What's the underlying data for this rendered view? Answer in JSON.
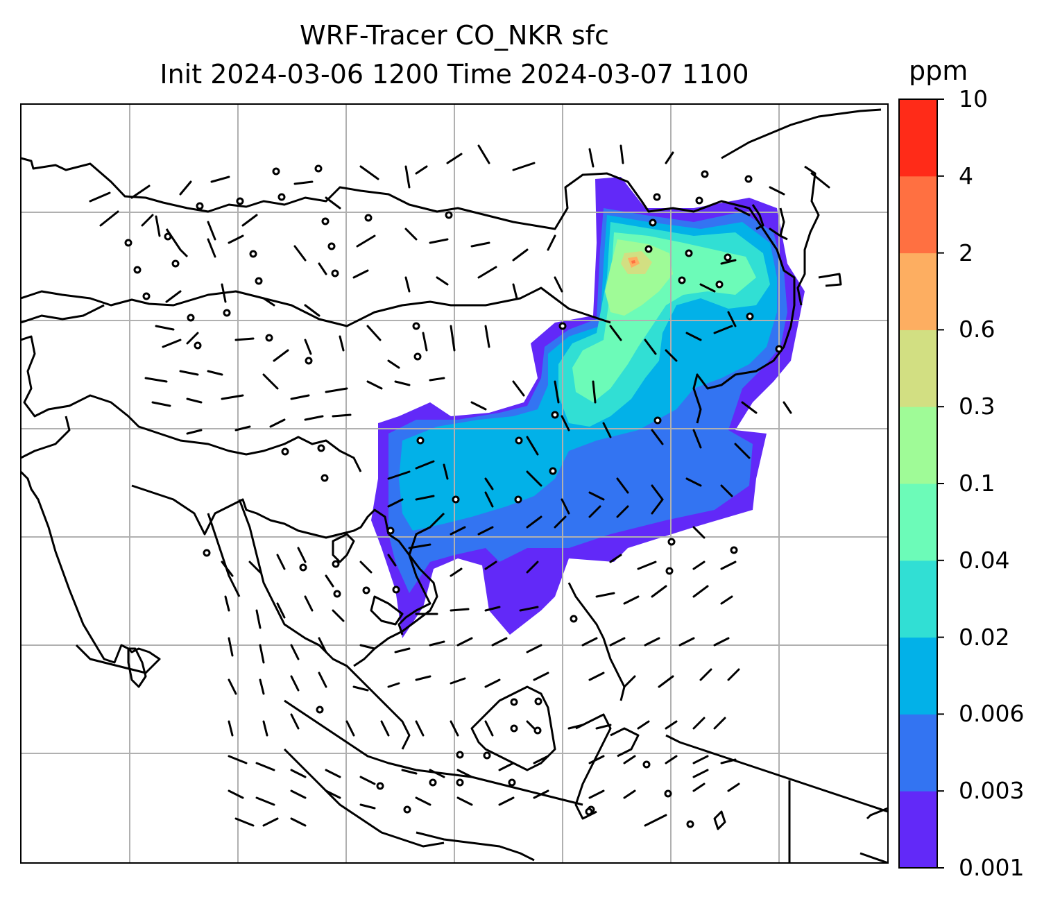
{
  "title": {
    "line1": "WRF-Tracer CO_NKR sfc",
    "line2": "Init 2024-03-06 1200 Time 2024-03-07 1100"
  },
  "colorbar": {
    "unit": "ppm",
    "levels": [
      "0.001",
      "0.003",
      "0.006",
      "0.02",
      "0.04",
      "0.1",
      "0.3",
      "0.6",
      "2",
      "4",
      "10"
    ],
    "colors": [
      "#6229f8",
      "#3374f2",
      "#02b1e8",
      "#31dfd4",
      "#6cfbb8",
      "#9ffb97",
      "#d2df82",
      "#fdae61",
      "#ff7041",
      "#ff2b18"
    ]
  },
  "map": {
    "gridline_color": "#b0b0b0",
    "coastline_color": "#000000",
    "barb_color": "#000000"
  }
}
